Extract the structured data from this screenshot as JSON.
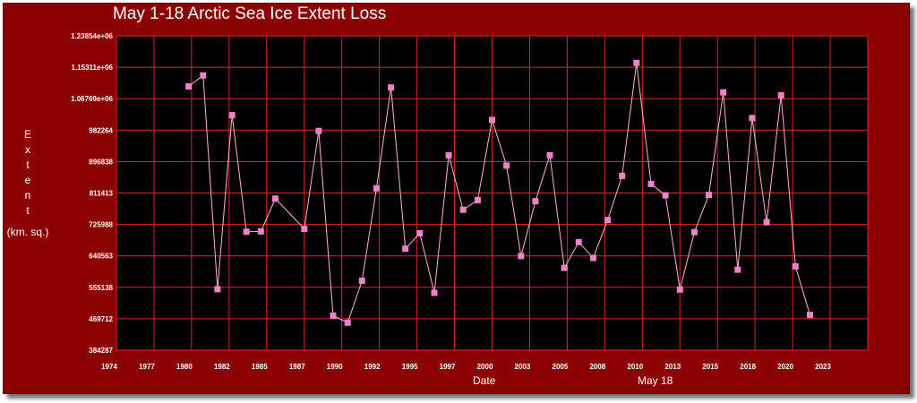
{
  "page": {
    "title": "May 1-18 Arctic Sea Ice Extent Loss",
    "ylabel_letters": [
      "E",
      "x",
      "t",
      "e",
      "n",
      "t"
    ],
    "yunit": "(km. sq.)",
    "xlabel": "Date",
    "date_label": "May 18"
  },
  "colors": {
    "frame": "#8b0000",
    "plot_bg": "#000000",
    "grid": "#e8202a",
    "line": "#ffb6d0",
    "marker": "#ee82c8"
  },
  "chart_data": {
    "type": "line",
    "title": "May 1-18 Arctic Sea Ice Extent Loss",
    "xlabel": "Date",
    "ylabel": "Extent (km. sq.)",
    "xlim": [
      1974,
      2026
    ],
    "ylim": [
      384287,
      1238540
    ],
    "grid": true,
    "x_ticks": [
      "1974",
      "1977",
      "1980",
      "1982",
      "1985",
      "1987",
      "1990",
      "1992",
      "1995",
      "1997",
      "2000",
      "2003",
      "2005",
      "2008",
      "2010",
      "2013",
      "2015",
      "2018",
      "2020",
      "2023"
    ],
    "y_ticks": [
      "384287",
      "469712",
      "555138",
      "640563",
      "725988",
      "811413",
      "896838",
      "982264",
      "1.06769e+06",
      "1.15311e+06",
      "1.23854e+06"
    ],
    "series": [
      {
        "x": [
          1979,
          1980,
          1981,
          1982,
          1983,
          1984,
          1985,
          1987,
          1988,
          1989,
          1990,
          1991,
          1992,
          1993,
          1994,
          1995,
          1996,
          1997,
          1998,
          1999,
          2000,
          2001,
          2002,
          2003,
          2004,
          2005,
          2006,
          2007,
          2008,
          2009,
          2010,
          2011,
          2012,
          2013,
          2014,
          2015,
          2016,
          2017,
          2018,
          2019,
          2020,
          2021,
          2022
        ],
        "y": [
          1101000,
          1131000,
          550000,
          1023000,
          706000,
          707000,
          796000,
          714000,
          980000,
          478000,
          459000,
          573000,
          824000,
          1098000,
          660000,
          702000,
          540000,
          914000,
          766000,
          792000,
          1010000,
          886000,
          640000,
          789000,
          914000,
          608000,
          678000,
          635000,
          738000,
          858000,
          1165000,
          836000,
          805000,
          549000,
          705000,
          806000,
          1085000,
          603000,
          1015000,
          732000,
          1077000,
          612000,
          480000
        ]
      }
    ]
  }
}
